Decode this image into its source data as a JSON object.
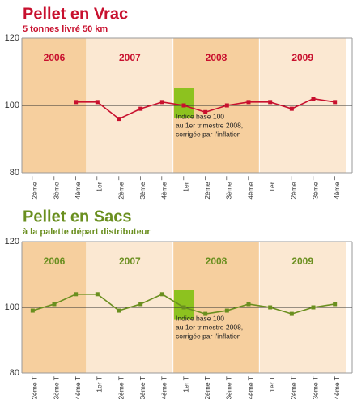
{
  "chart_data": [
    {
      "type": "line",
      "title": "Pellet en Vrac",
      "subtitle": "5 tonnes livré 50 km",
      "categories": [
        "2ème T",
        "3ème T",
        "4ème T",
        "1er T",
        "2ème T",
        "3ème T",
        "4ème T",
        "1er T",
        "2ème T",
        "3ème T",
        "4ème T",
        "1er T",
        "2ème T",
        "3ème T",
        "4ème T"
      ],
      "years": [
        "2006",
        "2007",
        "2008",
        "2009"
      ],
      "series": [
        {
          "color": "#c8102e",
          "values": [
            null,
            null,
            101,
            101,
            96,
            99,
            101,
            100,
            98,
            100,
            101,
            101,
            99,
            102,
            101
          ]
        }
      ],
      "ylim": [
        80,
        120
      ],
      "yticks": [
        80,
        100,
        120
      ],
      "annotation": [
        "Indice base 100",
        "au 1er trimestre 2008,",
        "corrigée par l'inflation"
      ]
    },
    {
      "type": "line",
      "title": "Pellet en Sacs",
      "subtitle": "à la palette départ distributeur",
      "categories": [
        "2ème T",
        "3ème T",
        "4ème T",
        "1er T",
        "2ème T",
        "3ème T",
        "4ème T",
        "1er T",
        "2ème T",
        "3ème T",
        "4ème T",
        "1er T",
        "2ème T",
        "3ème T",
        "4ème T"
      ],
      "years": [
        "2006",
        "2007",
        "2008",
        "2009"
      ],
      "series": [
        {
          "color": "#6a8f1f",
          "values": [
            99,
            101,
            104,
            104,
            99,
            101,
            104,
            100,
            98,
            99,
            101,
            100,
            98,
            100,
            101
          ]
        }
      ],
      "ylim": [
        80,
        120
      ],
      "yticks": [
        80,
        100,
        120
      ],
      "annotation": [
        "Indice base 100",
        "au 1er trimestre 2008,",
        "corrigée par l'inflation"
      ]
    }
  ]
}
